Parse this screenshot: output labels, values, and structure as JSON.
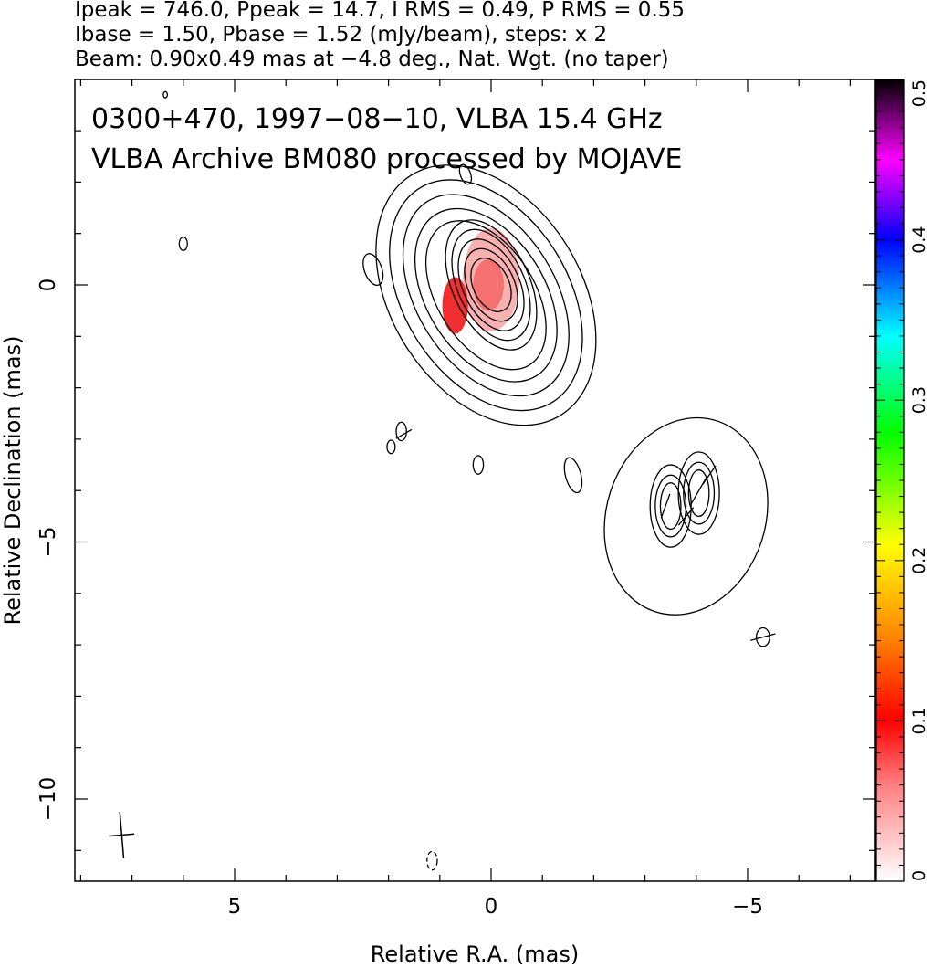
{
  "header": {
    "line1": "Ipeak = 746.0, Ppeak = 14.7, I RMS = 0.49, P RMS = 0.55",
    "line2": "Ibase = 1.50, Pbase = 1.52 (mJy/beam), steps: x 2",
    "line3": "Beam: 0.90x0.49 mas at −4.8 deg., Nat. Wgt. (no taper)"
  },
  "chart_data": {
    "type": "heatmap",
    "title": "0300+470, 1997−08−10, VLBA 15.4 GHz",
    "subtitle": "VLBA Archive BM080 processed by MOJAVE",
    "xlabel": "Relative R.A. (mas)",
    "ylabel": "Relative Declination (mas)",
    "xlim": [
      8.2,
      -7.5
    ],
    "ylim": [
      -11.5,
      4.0
    ],
    "x_ticks": [
      {
        "value": 5,
        "label": "5"
      },
      {
        "value": 0,
        "label": "0"
      },
      {
        "value": -5,
        "label": "−5"
      }
    ],
    "y_ticks": [
      {
        "value": 0,
        "label": "0"
      },
      {
        "value": -5,
        "label": "−5"
      },
      {
        "value": -10,
        "label": "−10"
      }
    ],
    "colorbar": {
      "range": [
        0,
        0.5
      ],
      "ticks": [
        {
          "value": 0,
          "label": "0"
        },
        {
          "value": 0.1,
          "label": "0.1"
        },
        {
          "value": 0.2,
          "label": "0.2"
        },
        {
          "value": 0.3,
          "label": "0.3"
        },
        {
          "value": 0.4,
          "label": "0.4"
        },
        {
          "value": 0.5,
          "label": "0.5"
        }
      ]
    },
    "beam": {
      "major_mas": 0.9,
      "minor_mas": 0.49,
      "pa_deg": -4.8,
      "x": 7.2,
      "y": -10.7
    },
    "contour_groups": [
      {
        "x": 0.0,
        "y": 0.0,
        "radii": [
          [
            0.35,
            0.55
          ],
          [
            0.45,
            0.75
          ],
          [
            0.55,
            0.95
          ],
          [
            0.65,
            1.15
          ],
          [
            0.75,
            1.35
          ]
        ],
        "angle": -25
      },
      {
        "x": 0.1,
        "y": -0.2,
        "radii": [
          [
            0.95,
            1.6
          ],
          [
            1.15,
            1.85
          ],
          [
            1.35,
            2.15
          ],
          [
            1.6,
            2.45
          ],
          [
            1.85,
            2.75
          ]
        ],
        "angle": -32
      },
      {
        "x": -3.5,
        "y": -4.3,
        "radii": [
          [
            0.2,
            0.45
          ],
          [
            0.3,
            0.6
          ],
          [
            0.4,
            0.8
          ]
        ],
        "angle": 0
      },
      {
        "x": -4.05,
        "y": -4.05,
        "radii": [
          [
            0.2,
            0.45
          ],
          [
            0.3,
            0.6
          ],
          [
            0.4,
            0.8
          ]
        ],
        "angle": 0
      },
      {
        "x": -3.8,
        "y": -4.5,
        "radii": [
          [
            1.55,
            1.95
          ]
        ],
        "angle": 18
      },
      {
        "x": 2.3,
        "y": 0.3,
        "radii": [
          [
            0.17,
            0.32
          ]
        ],
        "angle": -20
      },
      {
        "x": 6.0,
        "y": 0.8,
        "radii": [
          [
            0.08,
            0.13
          ]
        ],
        "angle": 0
      },
      {
        "x": 0.5,
        "y": 2.15,
        "radii": [
          [
            0.1,
            0.2
          ]
        ],
        "angle": -20
      },
      {
        "x": 1.75,
        "y": -2.85,
        "radii": [
          [
            0.1,
            0.18
          ]
        ],
        "angle": 0
      },
      {
        "x": 1.95,
        "y": -3.15,
        "radii": [
          [
            0.08,
            0.13
          ]
        ],
        "angle": 0
      },
      {
        "x": 0.25,
        "y": -3.5,
        "radii": [
          [
            0.1,
            0.18
          ]
        ],
        "angle": 0
      },
      {
        "x": -1.6,
        "y": -3.7,
        "radii": [
          [
            0.15,
            0.35
          ]
        ],
        "angle": -15
      },
      {
        "x": -5.3,
        "y": -6.85,
        "radii": [
          [
            0.13,
            0.18
          ]
        ],
        "angle": 0
      },
      {
        "x": 6.35,
        "y": 3.7,
        "radii": [
          [
            0.04,
            0.06
          ]
        ],
        "angle": 0
      }
    ],
    "dashed_contours": [
      {
        "x": 1.15,
        "y": -11.2,
        "radii": [
          0.1,
          0.18
        ]
      }
    ],
    "polarization_patches": [
      {
        "x": 0.0,
        "y": 0.1,
        "rx": 0.55,
        "ry": 1.0,
        "value": 0.04
      },
      {
        "x": 0.7,
        "y": -0.4,
        "rx": 0.25,
        "ry": 0.55,
        "value": 0.09
      },
      {
        "x": 0.05,
        "y": 0.0,
        "rx": 0.3,
        "ry": 0.5,
        "value": 0.06
      }
    ],
    "evpa_vectors": [
      {
        "x": -3.4,
        "y": -4.3,
        "length": 0.5,
        "angle_deg": 20
      },
      {
        "x": -4.05,
        "y": -4.0,
        "length": 0.6,
        "angle_deg": 30
      },
      {
        "x": -3.8,
        "y": -4.5,
        "length": 0.45,
        "angle_deg": 40
      },
      {
        "x": -4.25,
        "y": -3.7,
        "length": 0.45,
        "angle_deg": 35
      },
      {
        "x": -5.3,
        "y": -6.85,
        "length": 0.5,
        "angle_deg": 75
      },
      {
        "x": 1.7,
        "y": -2.9,
        "length": 0.35,
        "angle_deg": 60
      }
    ]
  }
}
